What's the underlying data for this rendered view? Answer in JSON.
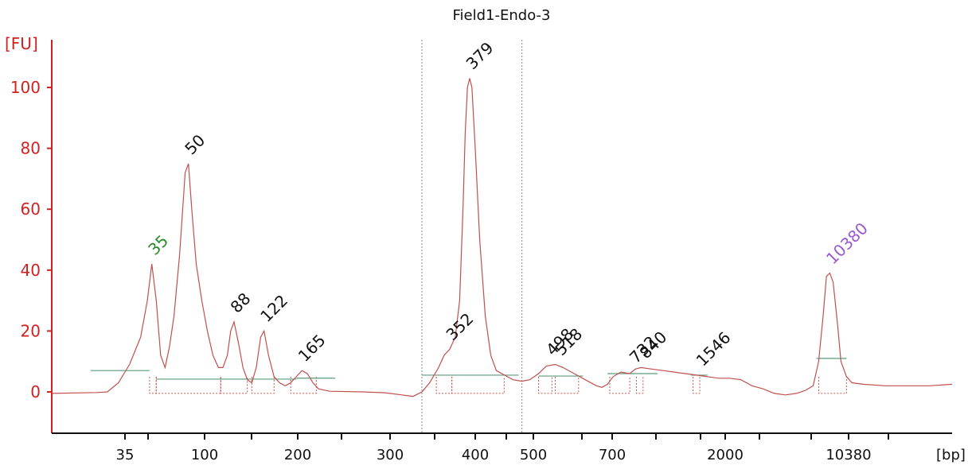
{
  "chart_data": {
    "type": "line",
    "title": "Field1-Endo-3",
    "ylabel": "[FU]",
    "xlabel": "[bp]",
    "ylim": [
      -13,
      116
    ],
    "yticks": [
      0,
      20,
      40,
      60,
      80,
      100
    ],
    "x_ticks": [
      "35",
      "",
      "100",
      "",
      "200",
      "",
      "300",
      "",
      "400",
      "",
      "500",
      "",
      "700",
      "",
      "",
      "2000",
      "",
      "",
      "10380",
      ""
    ],
    "grid": false,
    "colors": {
      "axis": "#d42020",
      "trace": "#c0504d",
      "baseline": "#5a9a7a",
      "marker": "#2a8a2a",
      "ladder_upper": "#9b59d0",
      "label": "#111111",
      "gate": "#888888"
    },
    "series": [
      {
        "values": [
          [
            0,
            -0.5
          ],
          [
            4,
            -0.2
          ],
          [
            5,
            0
          ],
          [
            6,
            3
          ],
          [
            7,
            9
          ],
          [
            8,
            18
          ],
          [
            8.6,
            30
          ],
          [
            9,
            42
          ],
          [
            9.4,
            30
          ],
          [
            9.8,
            12
          ],
          [
            10.2,
            8
          ],
          [
            10.6,
            15
          ],
          [
            11,
            25
          ],
          [
            11.5,
            45
          ],
          [
            12,
            72
          ],
          [
            12.3,
            75
          ],
          [
            12.6,
            60
          ],
          [
            13,
            42
          ],
          [
            13.5,
            30
          ],
          [
            14,
            20
          ],
          [
            14.5,
            12
          ],
          [
            15,
            8
          ],
          [
            15.4,
            8
          ],
          [
            15.8,
            12
          ],
          [
            16.1,
            20
          ],
          [
            16.4,
            23
          ],
          [
            16.8,
            16
          ],
          [
            17.2,
            8
          ],
          [
            17.6,
            4
          ],
          [
            18,
            3
          ],
          [
            18.4,
            8
          ],
          [
            18.8,
            18
          ],
          [
            19.1,
            20
          ],
          [
            19.5,
            12
          ],
          [
            20,
            5
          ],
          [
            20.5,
            3
          ],
          [
            21,
            2
          ],
          [
            21.5,
            3
          ],
          [
            22,
            5
          ],
          [
            22.5,
            7
          ],
          [
            23,
            6
          ],
          [
            23.5,
            3
          ],
          [
            24,
            1
          ],
          [
            25,
            0.2
          ],
          [
            28,
            0
          ],
          [
            30,
            -0.3
          ],
          [
            31.5,
            -1
          ],
          [
            32.5,
            -1.5
          ],
          [
            33.3,
            0
          ],
          [
            34,
            3
          ],
          [
            34.8,
            8
          ],
          [
            35.3,
            12
          ],
          [
            35.8,
            14
          ],
          [
            36.3,
            18
          ],
          [
            36.7,
            30
          ],
          [
            37,
            60
          ],
          [
            37.2,
            85
          ],
          [
            37.4,
            100
          ],
          [
            37.6,
            103
          ],
          [
            37.8,
            100
          ],
          [
            38.1,
            80
          ],
          [
            38.5,
            50
          ],
          [
            39,
            25
          ],
          [
            39.5,
            12
          ],
          [
            40,
            7
          ],
          [
            41,
            5
          ],
          [
            41.5,
            4
          ],
          [
            42.3,
            3.5
          ],
          [
            43,
            4
          ],
          [
            43.8,
            6
          ],
          [
            44.5,
            8.5
          ],
          [
            45.3,
            9
          ],
          [
            46,
            8
          ],
          [
            47,
            6
          ],
          [
            48,
            4
          ],
          [
            49,
            2
          ],
          [
            49.5,
            1.5
          ],
          [
            50,
            2.5
          ],
          [
            50.5,
            5
          ],
          [
            51.2,
            6.5
          ],
          [
            52,
            6
          ],
          [
            52.5,
            7.5
          ],
          [
            53,
            8
          ],
          [
            54,
            7.5
          ],
          [
            55,
            7
          ],
          [
            56,
            6.5
          ],
          [
            57,
            6
          ],
          [
            58,
            5.5
          ],
          [
            59,
            5
          ],
          [
            60,
            4.5
          ],
          [
            61,
            4.5
          ],
          [
            62,
            4
          ],
          [
            63,
            2
          ],
          [
            64,
            1
          ],
          [
            65,
            -0.5
          ],
          [
            66,
            -1
          ],
          [
            67,
            -0.5
          ],
          [
            67.8,
            0.5
          ],
          [
            68.5,
            2
          ],
          [
            69,
            10
          ],
          [
            69.4,
            25
          ],
          [
            69.7,
            38
          ],
          [
            70,
            39
          ],
          [
            70.3,
            36
          ],
          [
            70.7,
            22
          ],
          [
            71,
            10
          ],
          [
            71.5,
            5
          ],
          [
            72,
            3
          ],
          [
            73,
            2.5
          ],
          [
            75,
            2
          ],
          [
            77,
            2
          ],
          [
            79,
            2
          ],
          [
            81,
            2.5
          ]
        ],
        "x_range": [
          0,
          81
        ]
      }
    ],
    "peak_labels": [
      {
        "text": "35",
        "x": 9,
        "y": 42,
        "color": "#2a8a2a"
      },
      {
        "text": "50",
        "x": 12.3,
        "y": 75,
        "color": "#111111"
      },
      {
        "text": "88",
        "x": 16.4,
        "y": 23,
        "color": "#111111"
      },
      {
        "text": "122",
        "x": 19.1,
        "y": 20,
        "color": "#111111"
      },
      {
        "text": "165",
        "x": 22.5,
        "y": 7,
        "color": "#111111"
      },
      {
        "text": "352",
        "x": 35.8,
        "y": 14,
        "color": "#111111"
      },
      {
        "text": "379",
        "x": 37.6,
        "y": 103,
        "color": "#111111"
      },
      {
        "text": "498",
        "x": 44.8,
        "y": 9,
        "color": "#111111"
      },
      {
        "text": "518",
        "x": 45.6,
        "y": 9,
        "color": "#111111"
      },
      {
        "text": "732",
        "x": 52.3,
        "y": 6.5,
        "color": "#111111"
      },
      {
        "text": "840",
        "x": 53.2,
        "y": 8,
        "color": "#111111"
      },
      {
        "text": "1546",
        "x": 58.3,
        "y": 5.5,
        "color": "#111111"
      },
      {
        "text": "10380",
        "x": 70,
        "y": 39,
        "color": "#9b59d0"
      }
    ],
    "baselines": [
      {
        "x1": 3.5,
        "x2": 8.8,
        "y": 7
      },
      {
        "x1": 9.4,
        "x2": 15.2,
        "y": 4.2
      },
      {
        "x1": 15.2,
        "x2": 22.0,
        "y": 4.2
      },
      {
        "x1": 22.0,
        "x2": 25.5,
        "y": 4.5
      },
      {
        "x1": 33.3,
        "x2": 42.0,
        "y": 5.5
      },
      {
        "x1": 43.8,
        "x2": 47.8,
        "y": 5.2
      },
      {
        "x1": 50.0,
        "x2": 54.5,
        "y": 6
      },
      {
        "x1": 57.5,
        "x2": 59.0,
        "y": 5.5
      },
      {
        "x1": 68.8,
        "x2": 71.5,
        "y": 11
      }
    ],
    "peak_regions": [
      {
        "x1": 8.8,
        "x2": 9.4
      },
      {
        "x1": 9.4,
        "x2": 15.2
      },
      {
        "x1": 15.2,
        "x2": 17.6
      },
      {
        "x1": 18.0,
        "x2": 20.0
      },
      {
        "x1": 21.5,
        "x2": 23.8
      },
      {
        "x1": 34.6,
        "x2": 36.0
      },
      {
        "x1": 36.0,
        "x2": 40.7
      },
      {
        "x1": 43.8,
        "x2": 45.0
      },
      {
        "x1": 45.3,
        "x2": 47.4
      },
      {
        "x1": 50.2,
        "x2": 52.0
      },
      {
        "x1": 52.6,
        "x2": 53.2
      },
      {
        "x1": 57.7,
        "x2": 58.3
      },
      {
        "x1": 69.0,
        "x2": 71.5
      }
    ],
    "gate_lines": [
      33.3,
      42.3
    ]
  }
}
